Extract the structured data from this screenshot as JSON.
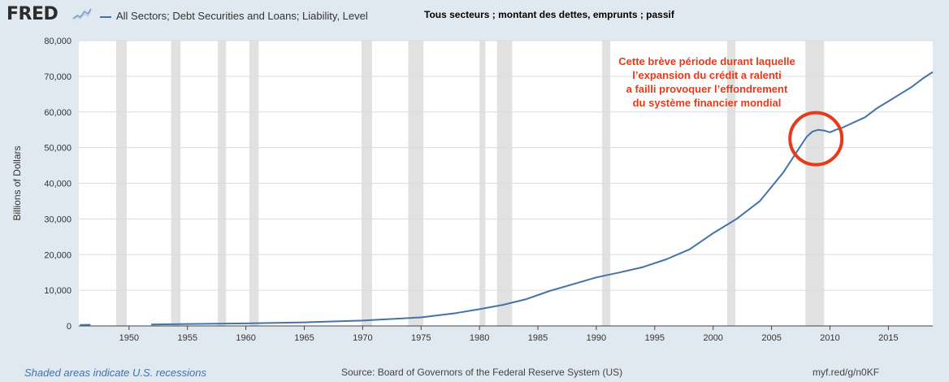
{
  "header": {
    "logo_text": "FRED",
    "legend_label": "All Sectors; Debt Securities and Loans; Liability, Level",
    "french_title": "Tous secteurs ; montant des dettes, emprunts ; passif"
  },
  "footer": {
    "recessions_note": "Shaded areas indicate U.S. recessions",
    "source": "Source: Board of Governors of the Federal Reserve System (US)",
    "short_url": "myf.red/g/n0KF"
  },
  "colors": {
    "series": "#4572a7",
    "recession": "#e1e1e1",
    "annotation": "#e8391b"
  },
  "chart_data": {
    "type": "line",
    "ylabel": "Billions of Dollars",
    "xlim": [
      1945.7,
      2018.8
    ],
    "ylim": [
      0,
      80000
    ],
    "y_ticks": [
      "0",
      "10,000",
      "20,000",
      "30,000",
      "40,000",
      "50,000",
      "60,000",
      "70,000",
      "80,000"
    ],
    "x_ticks": [
      "1950",
      "1955",
      "1960",
      "1965",
      "1970",
      "1975",
      "1980",
      "1985",
      "1990",
      "1995",
      "2000",
      "2005",
      "2010",
      "2015"
    ],
    "grid": true,
    "recessions": [
      [
        1948.9,
        1949.8
      ],
      [
        1953.6,
        1954.4
      ],
      [
        1957.6,
        1958.3
      ],
      [
        1960.3,
        1961.1
      ],
      [
        1969.9,
        1970.8
      ],
      [
        1973.9,
        1975.2
      ],
      [
        1980.0,
        1980.5
      ],
      [
        1981.5,
        1982.8
      ],
      [
        1990.5,
        1991.2
      ],
      [
        2001.2,
        2001.9
      ],
      [
        2007.9,
        2009.5
      ]
    ],
    "series": [
      {
        "x": [
          1945.8,
          1946.7
        ],
        "y": [
          300,
          320
        ]
      },
      {
        "x": [
          1951.9,
          1955,
          1960,
          1965,
          1970,
          1975,
          1978,
          1980,
          1982,
          1984,
          1986,
          1988,
          1990,
          1992,
          1994,
          1996,
          1998,
          2000,
          2002,
          2004,
          2005,
          2006,
          2007,
          2007.5,
          2008,
          2008.5,
          2009,
          2009.5,
          2010,
          2010.5,
          2011,
          2012,
          2013,
          2014,
          2015,
          2016,
          2017,
          2018,
          2018.8
        ],
        "y": [
          400,
          550,
          700,
          1000,
          1500,
          2400,
          3600,
          4700,
          5900,
          7500,
          9800,
          11700,
          13600,
          15000,
          16500,
          18700,
          21500,
          26000,
          30000,
          35000,
          39000,
          43000,
          48000,
          50500,
          53000,
          54500,
          55000,
          54800,
          54300,
          55000,
          55500,
          57000,
          58500,
          61000,
          63000,
          65000,
          67000,
          69500,
          71200
        ]
      }
    ],
    "annotation_lines": [
      "Cette brève période durant laquelle",
      "l’expansion du crédit a ralenti",
      "a failli provoquer l’effondrement",
      "du système financier mondial"
    ]
  }
}
